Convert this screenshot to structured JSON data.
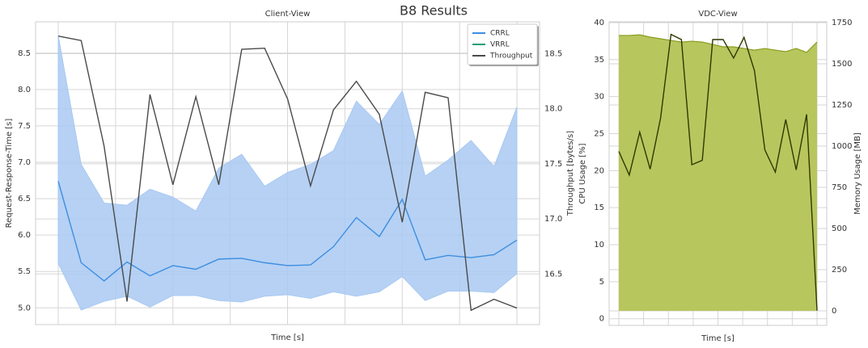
{
  "title": "B8 Results",
  "chart_data": [
    {
      "type": "line",
      "title": "Client-View",
      "xlabel": "Time [s]",
      "ylabel": "Request-Response-Time [s]",
      "y2label": "Throughput [bytes/s]",
      "ylim": [
        4.77,
        8.93
      ],
      "yticks": [
        {
          "value": 5,
          "label": "5.0"
        },
        5.5,
        {
          "value": 6,
          "label": "6.0"
        },
        6.5,
        {
          "value": 7,
          "label": "7.0"
        },
        7.5,
        {
          "value": 8,
          "label": "8.0"
        },
        8.5
      ],
      "y2lim": [
        16.04,
        18.79
      ],
      "y2ticks": [
        16.5,
        {
          "value": 17,
          "label": "17.0"
        },
        17.5,
        {
          "value": 18,
          "label": "18.0"
        },
        18.5
      ],
      "grid": true,
      "legend": "upper right",
      "series": [
        {
          "name": "CRRL",
          "color": "#3d8ee0",
          "band_color": "#a9c9f2",
          "values": [
            6.74,
            5.62,
            5.37,
            5.63,
            5.44,
            5.58,
            5.53,
            5.67,
            5.68,
            5.62,
            5.58,
            5.59,
            5.84,
            6.24,
            5.98,
            6.49,
            5.66,
            5.72,
            5.69,
            5.73,
            5.93
          ],
          "band_low": [
            5.61,
            4.97,
            5.09,
            5.16,
            5.01,
            5.17,
            5.17,
            5.1,
            5.08,
            5.16,
            5.18,
            5.13,
            5.22,
            5.16,
            5.22,
            5.43,
            5.1,
            5.23,
            5.23,
            5.21,
            5.47
          ],
          "band_high": [
            8.74,
            6.97,
            6.44,
            6.41,
            6.63,
            6.52,
            6.33,
            6.92,
            7.11,
            6.67,
            6.86,
            6.97,
            7.16,
            7.84,
            7.52,
            7.98,
            6.81,
            7.03,
            7.3,
            6.94,
            7.76
          ]
        },
        {
          "name": "VRRL",
          "color": "#1a9e77",
          "values": [
            null,
            null,
            null,
            null,
            null,
            null,
            null,
            null,
            null,
            null,
            null,
            null,
            null,
            null,
            null,
            null,
            null,
            null,
            null,
            null,
            null
          ]
        },
        {
          "name": "Throughput",
          "color": "#4a4a4a",
          "axis": "y2",
          "values": [
            18.66,
            18.62,
            17.66,
            16.25,
            18.13,
            17.31,
            18.11,
            17.31,
            18.54,
            18.55,
            18.09,
            17.3,
            17.99,
            18.25,
            17.95,
            16.97,
            18.15,
            18.1,
            16.17,
            16.27,
            16.19
          ]
        }
      ]
    },
    {
      "type": "line",
      "title": "VDC-View",
      "xlabel": "Time [s]",
      "ylabel": "CPU Usage [%]",
      "y2label": "Memory Usage [MB]",
      "ylim": [
        -0.9,
        40.1
      ],
      "yticks": [
        0,
        5,
        10,
        15,
        20,
        25,
        30,
        35,
        40
      ],
      "y2lim": [
        -88,
        1755
      ],
      "y2ticks": [
        0,
        250,
        500,
        750,
        1000,
        1250,
        1500,
        1750
      ],
      "grid": true,
      "series": [
        {
          "color": "#8a9b1e",
          "fill_color": "#b8c65e",
          "axis": "y2",
          "fill": true,
          "values": [
            1672,
            1672,
            1676,
            1662,
            1652,
            1642,
            1632,
            1637,
            1632,
            1618,
            1603,
            1603,
            1593,
            1583,
            1593,
            1583,
            1574,
            1593,
            1569,
            1632
          ]
        },
        {
          "color": "#2f3a00",
          "values": [
            22.6,
            19.4,
            25.2,
            20.2,
            27.1,
            38.4,
            37.7,
            20.8,
            21.4,
            37.7,
            37.7,
            35.2,
            38.0,
            33.5,
            22.8,
            19.8,
            26.9,
            20.1,
            27.6,
            1.1
          ]
        }
      ]
    }
  ]
}
